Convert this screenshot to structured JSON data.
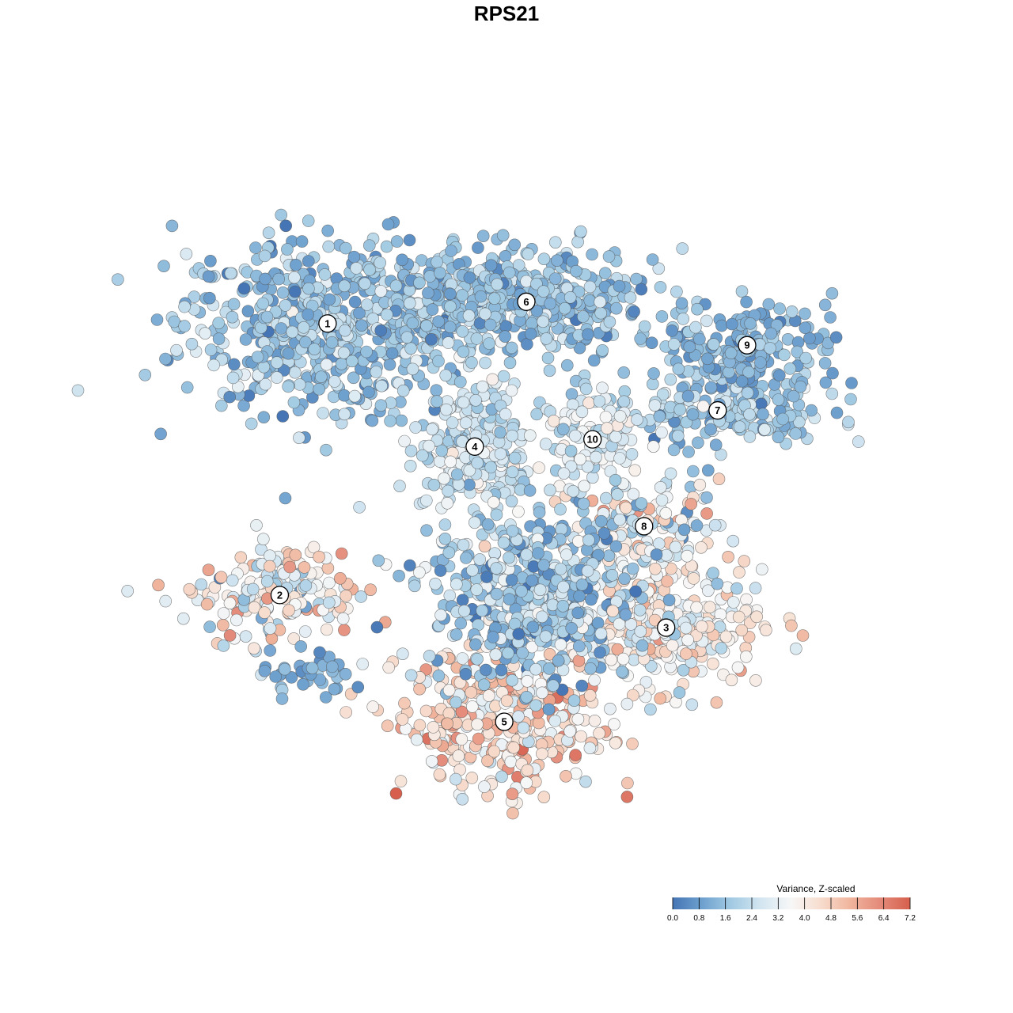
{
  "chart_data": {
    "type": "scatter",
    "title": "RPS21",
    "xlabel": "",
    "ylabel": "",
    "grid": false,
    "axes_visible": false,
    "legend": {
      "title": "Variance, Z-scaled",
      "placement": "bottom-right",
      "range": [
        0,
        7.2
      ],
      "ticks": [
        "0.0",
        "0.8",
        "1.6",
        "2.4",
        "3.2",
        "4.0",
        "4.8",
        "5.6",
        "6.4",
        "7.2"
      ],
      "colormap": [
        "#4575b4",
        "#6fa1cf",
        "#a3cbe3",
        "#d4e6f1",
        "#f7f7f7",
        "#f7dccd",
        "#f0b49c",
        "#e48a7a",
        "#d6604d"
      ]
    },
    "x_range": [
      0,
      100
    ],
    "y_range": [
      0,
      100
    ],
    "clusters": [
      {
        "label": "1",
        "x": 23,
        "y": 75,
        "sx": 10,
        "sy": 6,
        "n": 620,
        "base": 1.6,
        "spread": 0.7
      },
      {
        "label": "2",
        "x": 16.5,
        "y": 37.5,
        "sx": 5.5,
        "sy": 3.5,
        "n": 180,
        "base": 3.6,
        "spread": 1.2
      },
      {
        "label": "3",
        "x": 69,
        "y": 33,
        "sx": 6.5,
        "sy": 4,
        "n": 300,
        "base": 3.6,
        "spread": 0.9
      },
      {
        "label": "4",
        "x": 43,
        "y": 58,
        "sx": 4,
        "sy": 5,
        "n": 260,
        "base": 2.6,
        "spread": 0.6
      },
      {
        "label": "5",
        "x": 47,
        "y": 20,
        "sx": 7,
        "sy": 5,
        "n": 340,
        "base": 4.4,
        "spread": 1.1
      },
      {
        "label": "6",
        "x": 50,
        "y": 78,
        "sx": 9,
        "sy": 3.5,
        "n": 420,
        "base": 1.6,
        "spread": 0.6
      },
      {
        "label": "7",
        "x": 76,
        "y": 63,
        "sx": 8,
        "sy": 3,
        "n": 200,
        "base": 1.8,
        "spread": 0.7
      },
      {
        "label": "8",
        "x": 66,
        "y": 47,
        "sx": 5,
        "sy": 3,
        "n": 140,
        "base": 3.2,
        "spread": 1.3
      },
      {
        "label": "9",
        "x": 80,
        "y": 72,
        "sx": 6,
        "sy": 3,
        "n": 170,
        "base": 1.3,
        "spread": 0.5
      },
      {
        "label": "10",
        "x": 59,
        "y": 59,
        "sx": 3.5,
        "sy": 3.5,
        "n": 110,
        "base": 2.8,
        "spread": 0.6
      },
      {
        "label": "",
        "x": 51,
        "y": 37,
        "sx": 7,
        "sy": 6,
        "n": 520,
        "base": 1.8,
        "spread": 0.9
      },
      {
        "label": "",
        "x": 20,
        "y": 26,
        "sx": 3,
        "sy": 1.5,
        "n": 40,
        "base": 1.2,
        "spread": 0.4
      }
    ]
  }
}
